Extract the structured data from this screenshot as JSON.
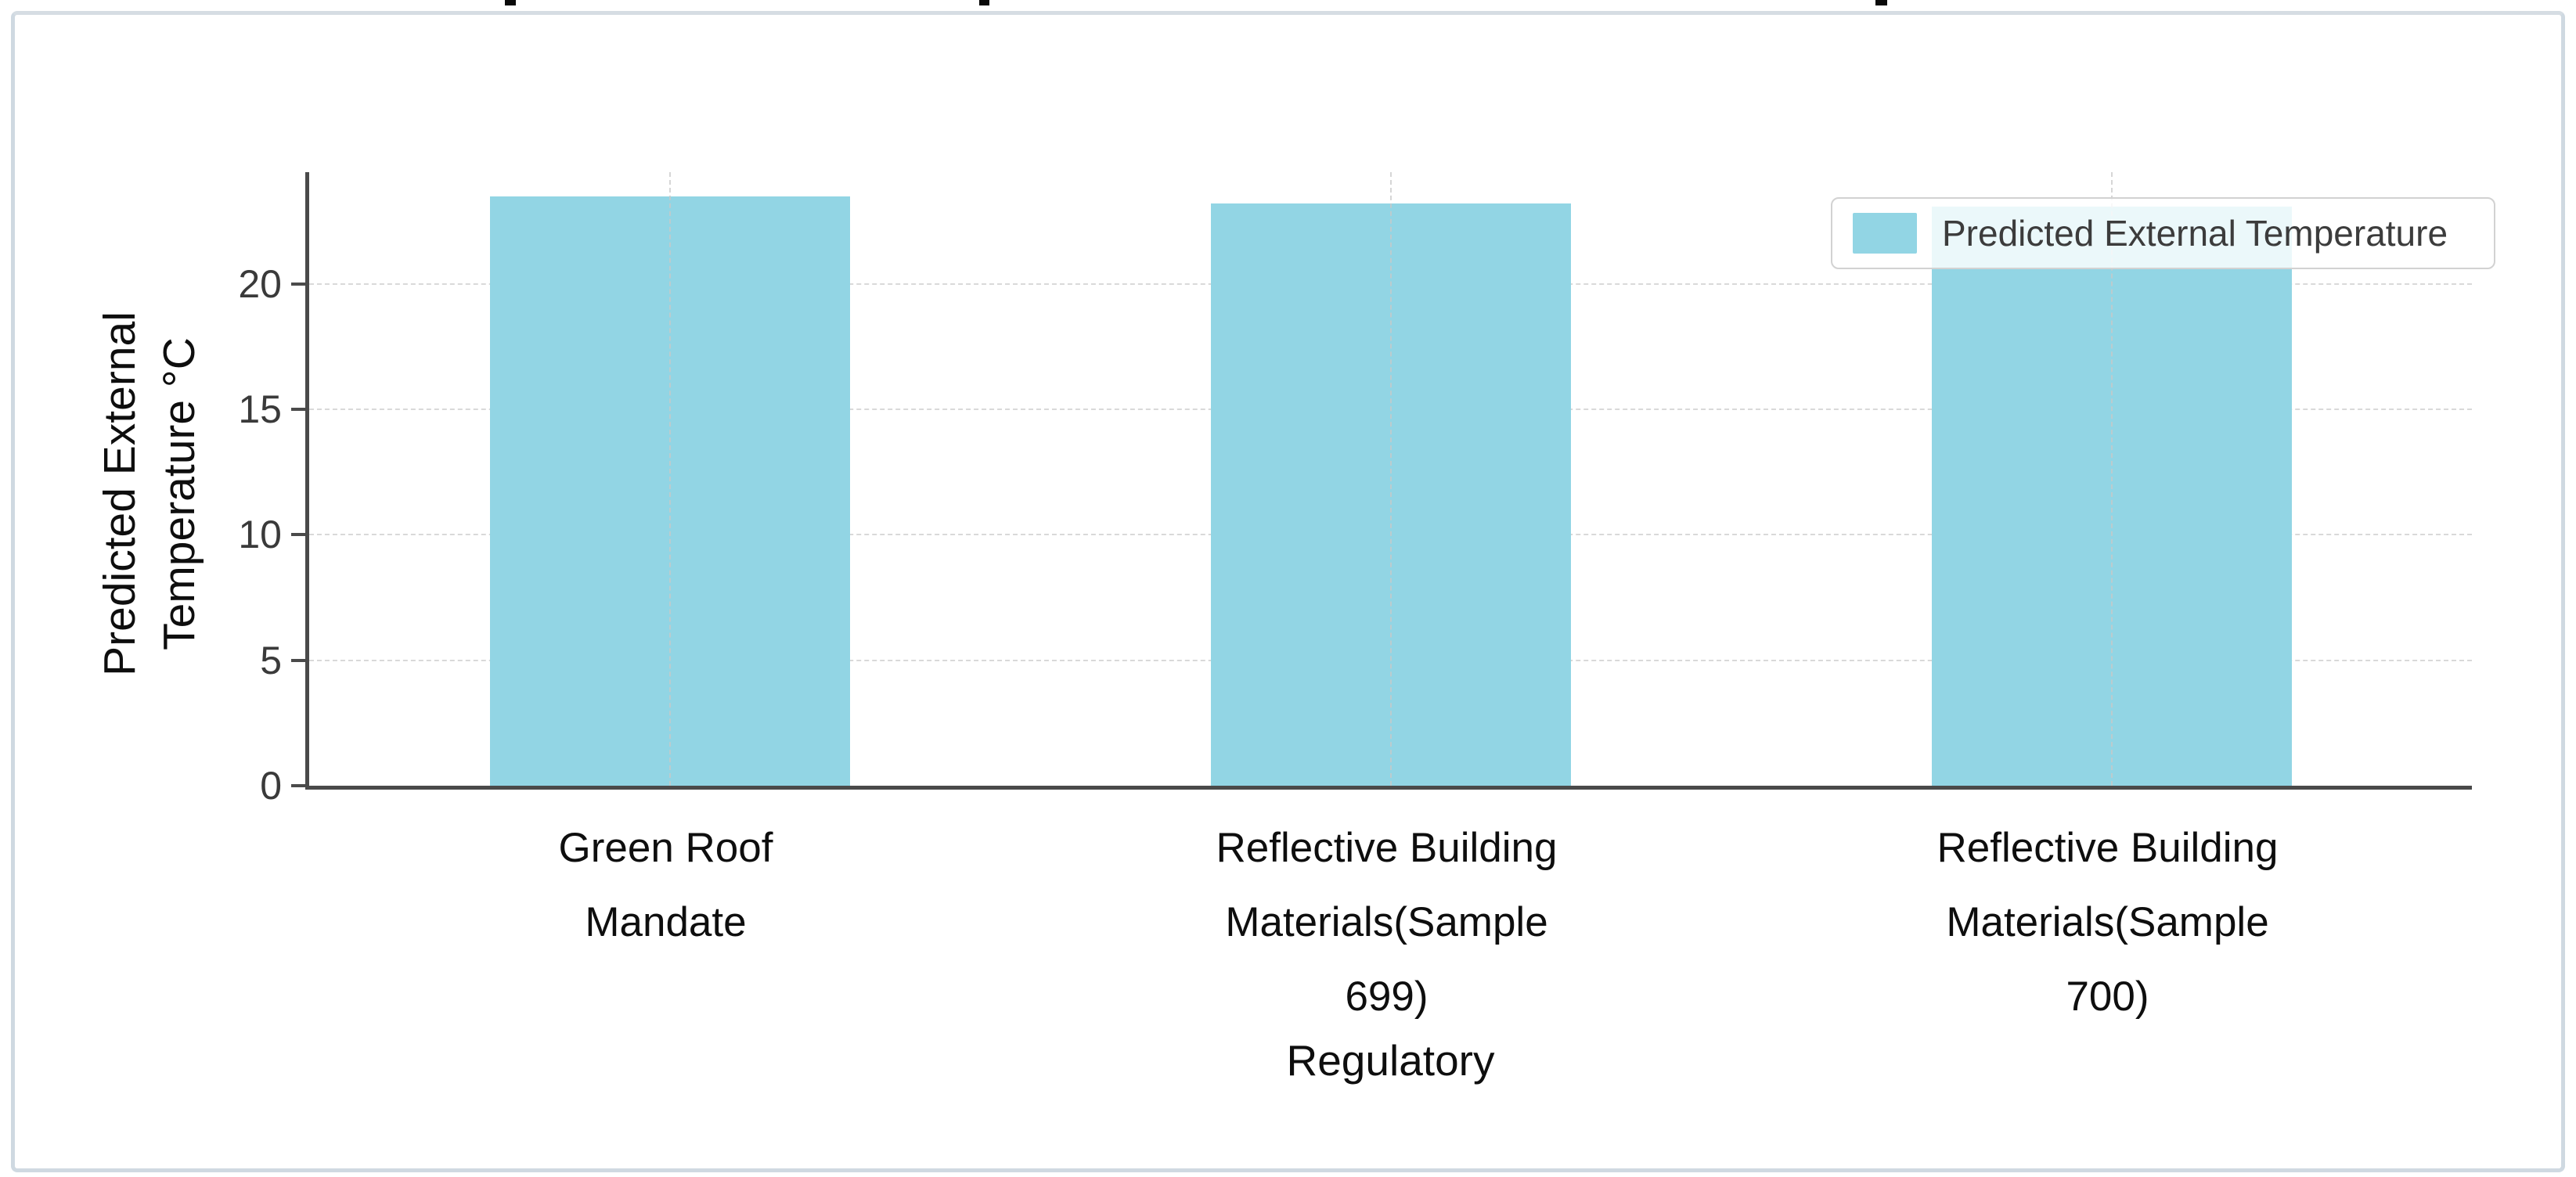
{
  "chart_data": {
    "type": "bar",
    "categories": [
      "Green Roof\nMandate",
      "Reflective Building\nMaterials(Sample\n699)",
      "Reflective Building\nMaterials(Sample\n700)"
    ],
    "values": [
      23.5,
      23.2,
      23.1
    ],
    "title": "",
    "xlabel": "Regulatory",
    "ylabel": "Predicted External\nTemperature °C",
    "legend_label": "Predicted External Temperature",
    "legend_position": "upper right",
    "yticks": [
      0,
      5,
      10,
      15,
      20
    ],
    "ylim": [
      0,
      24.46
    ],
    "grid": true,
    "bar_color": "#92d5e4",
    "note_third_bar": "top edge partially hidden behind legend box"
  }
}
